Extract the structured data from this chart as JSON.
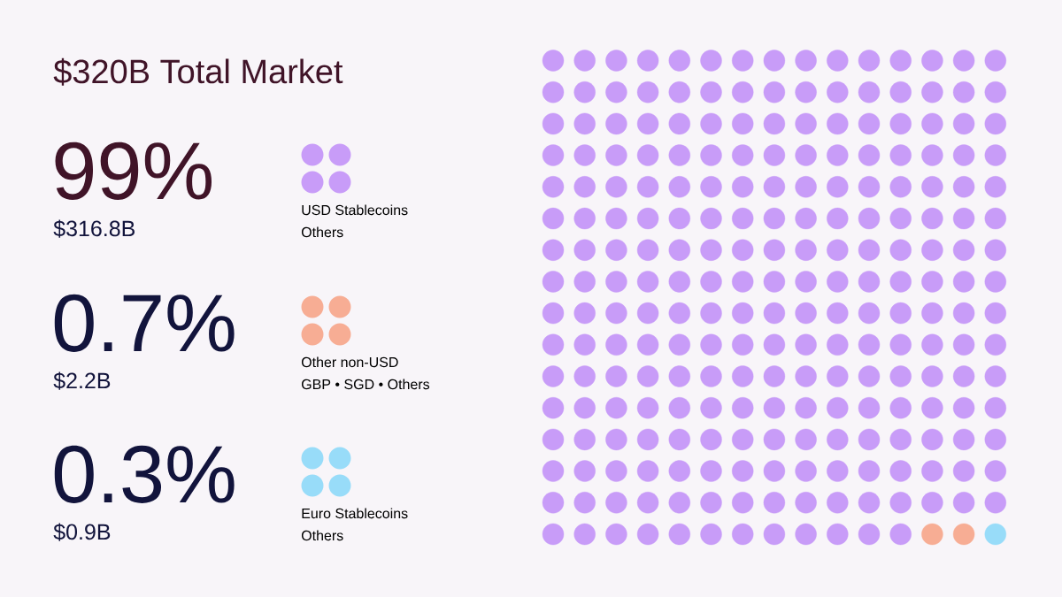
{
  "chart_data": {
    "type": "other",
    "title": "$320B Total Market",
    "categories": [
      "USD Stablecoins",
      "Other non-USD",
      "Euro Stablecoins"
    ],
    "values": [
      99,
      0.7,
      0.3
    ],
    "value_labels": [
      "99%",
      "0.7%",
      "0.3%"
    ],
    "colors": [
      "#c89cf8",
      "#f7ad94",
      "#98dcf9"
    ],
    "annotations": [
      "$316.8B",
      "Others",
      "$2.2B",
      "GBP • SGD • Others",
      "$0.9B",
      "Others"
    ]
  }
}
